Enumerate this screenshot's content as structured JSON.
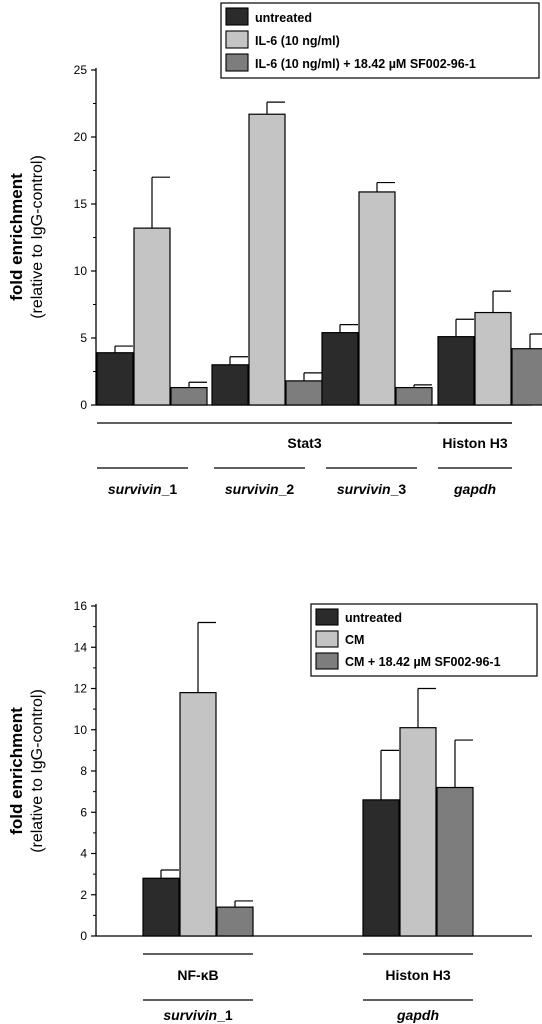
{
  "chart_data": [
    {
      "type": "bar",
      "ylabel": "fold enrichment",
      "ylabel_sub": "(relative to IgG-control)",
      "ylim": [
        0,
        25
      ],
      "yticks": [
        0,
        5,
        10,
        15,
        20,
        25
      ],
      "legend_position": "top-right",
      "series": [
        {
          "name": "untreated",
          "color": "#2b2b2b"
        },
        {
          "name": "IL-6 (10 ng/ml)",
          "color": "#c4c4c4"
        },
        {
          "name": "IL-6 (10 ng/ml) + 18.42 µM SF002-96-1",
          "color": "#7d7d7d"
        }
      ],
      "groups": [
        {
          "label": "survivin",
          "suffix": "_1",
          "values": [
            3.9,
            13.2,
            1.3
          ],
          "errors": [
            0.5,
            3.8,
            0.4
          ]
        },
        {
          "label": "survivin",
          "suffix": "_2",
          "values": [
            3.0,
            21.7,
            1.8
          ],
          "errors": [
            0.6,
            0.9,
            0.6
          ]
        },
        {
          "label": "survivin",
          "suffix": "_3",
          "values": [
            5.4,
            15.9,
            1.3
          ],
          "errors": [
            0.6,
            0.7,
            0.2
          ]
        },
        {
          "label": "gapdh",
          "suffix": "",
          "values": [
            5.1,
            6.9,
            4.2
          ],
          "errors": [
            1.3,
            1.6,
            1.1
          ]
        }
      ],
      "brackets": [
        {
          "label": "Stat3",
          "groups": [
            0,
            2
          ]
        },
        {
          "label": "Histon H3",
          "groups": [
            3,
            3
          ]
        }
      ]
    },
    {
      "type": "bar",
      "ylabel": "fold enrichment",
      "ylabel_sub": "(relative to IgG-control)",
      "ylim": [
        0,
        16
      ],
      "yticks": [
        0,
        2,
        4,
        6,
        8,
        10,
        12,
        14,
        16
      ],
      "legend_position": "top-right",
      "series": [
        {
          "name": "untreated",
          "color": "#2b2b2b"
        },
        {
          "name": "CM",
          "color": "#c4c4c4"
        },
        {
          "name": "CM + 18.42 µM SF002-96-1",
          "color": "#7d7d7d"
        }
      ],
      "groups": [
        {
          "label": "survivin",
          "suffix": "_1",
          "values": [
            2.8,
            11.8,
            1.4
          ],
          "errors": [
            0.4,
            3.4,
            0.3
          ]
        },
        {
          "label": "gapdh",
          "suffix": "",
          "values": [
            6.6,
            10.1,
            7.2
          ],
          "errors": [
            2.4,
            1.9,
            2.3
          ]
        }
      ],
      "brackets": [
        {
          "label": "NF-κB",
          "groups": [
            0,
            0
          ]
        },
        {
          "label": "Histon H3",
          "groups": [
            1,
            1
          ]
        }
      ]
    }
  ]
}
